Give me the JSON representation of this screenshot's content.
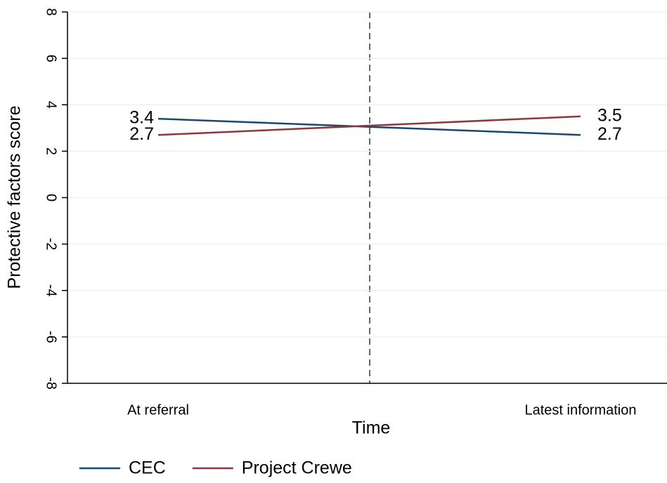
{
  "chart_data": {
    "type": "line",
    "x_label": "Time",
    "y_label": "Protective factors score",
    "categories": [
      "At referral",
      "Latest information"
    ],
    "series": [
      {
        "name": "CEC",
        "color": "#1a476f",
        "values": [
          3.4,
          2.7
        ]
      },
      {
        "name": "Project Crewe",
        "color": "#90353b",
        "values": [
          2.7,
          3.5
        ]
      }
    ],
    "ylim": [
      -8,
      8
    ],
    "yticks": [
      -8,
      -6,
      -4,
      -2,
      0,
      2,
      4,
      6,
      8
    ],
    "grid": true,
    "legend": "bottom"
  }
}
